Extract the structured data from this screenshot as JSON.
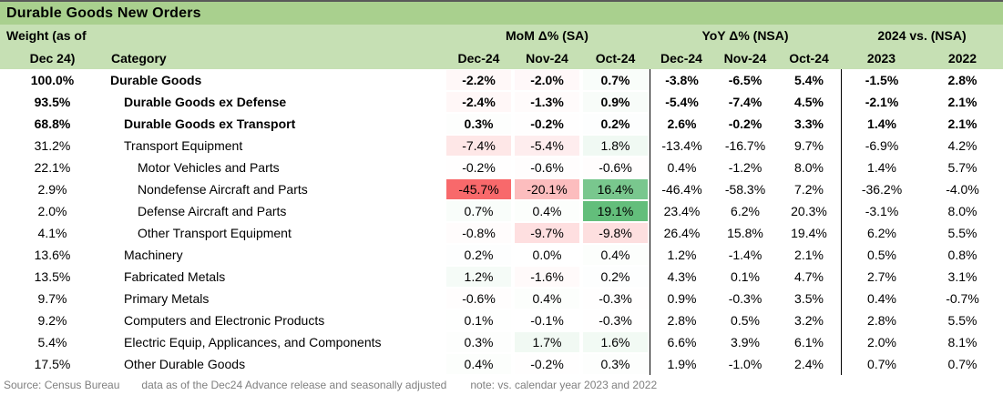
{
  "chart_data": {
    "type": "table",
    "title": "Durable Goods New Orders",
    "header": {
      "weight_line1": "Weight (as of",
      "weight_line2": "Dec 24)",
      "category": "Category",
      "groups": [
        {
          "label": "MoM Δ% (SA)",
          "cols": [
            "Dec-24",
            "Nov-24",
            "Oct-24"
          ]
        },
        {
          "label": "YoY Δ% (NSA)",
          "cols": [
            "Dec-24",
            "Nov-24",
            "Oct-24"
          ]
        },
        {
          "label": "2024 vs. (NSA)",
          "cols": [
            "2023",
            "2022"
          ]
        }
      ]
    },
    "rows": [
      {
        "weight": 100.0,
        "category": "Durable Goods",
        "indent": 0,
        "bold": true,
        "mom": [
          -2.2,
          -2.0,
          0.7
        ],
        "yoy": [
          -3.8,
          -6.5,
          5.4
        ],
        "vs": [
          -1.5,
          2.8
        ]
      },
      {
        "weight": 93.5,
        "category": "Durable Goods ex Defense",
        "indent": 1,
        "bold": true,
        "mom": [
          -2.4,
          -1.3,
          0.9
        ],
        "yoy": [
          -5.4,
          -7.4,
          4.5
        ],
        "vs": [
          -2.1,
          2.1
        ]
      },
      {
        "weight": 68.8,
        "category": "Durable Goods ex Transport",
        "indent": 1,
        "bold": true,
        "mom": [
          0.3,
          -0.2,
          0.2
        ],
        "yoy": [
          2.6,
          -0.2,
          3.3
        ],
        "vs": [
          1.4,
          2.1
        ]
      },
      {
        "weight": 31.2,
        "category": "Transport Equipment",
        "indent": 1,
        "bold": false,
        "mom": [
          -7.4,
          -5.4,
          1.8
        ],
        "yoy": [
          -13.4,
          -16.7,
          9.7
        ],
        "vs": [
          -6.9,
          4.2
        ]
      },
      {
        "weight": 22.1,
        "category": "Motor Vehicles and Parts",
        "indent": 2,
        "bold": false,
        "mom": [
          -0.2,
          -0.6,
          -0.6
        ],
        "yoy": [
          0.4,
          -1.2,
          8.0
        ],
        "vs": [
          1.4,
          5.7
        ]
      },
      {
        "weight": 2.9,
        "category": "Nondefense Aircraft and Parts",
        "indent": 2,
        "bold": false,
        "mom": [
          -45.7,
          -20.1,
          16.4
        ],
        "yoy": [
          -46.4,
          -58.3,
          7.2
        ],
        "vs": [
          -36.2,
          -4.0
        ]
      },
      {
        "weight": 2.0,
        "category": "Defense Aircraft and Parts",
        "indent": 2,
        "bold": false,
        "mom": [
          0.7,
          0.4,
          19.1
        ],
        "yoy": [
          23.4,
          6.2,
          20.3
        ],
        "vs": [
          -3.1,
          8.0
        ]
      },
      {
        "weight": 4.1,
        "category": "Other Transport Equipment",
        "indent": 2,
        "bold": false,
        "mom": [
          -0.8,
          -9.7,
          -9.8
        ],
        "yoy": [
          26.4,
          15.8,
          19.4
        ],
        "vs": [
          6.2,
          5.5
        ]
      },
      {
        "weight": 13.6,
        "category": "Machinery",
        "indent": 1,
        "bold": false,
        "mom": [
          0.2,
          0.0,
          0.4
        ],
        "yoy": [
          1.2,
          -1.4,
          2.1
        ],
        "vs": [
          0.5,
          0.8
        ]
      },
      {
        "weight": 13.5,
        "category": "Fabricated Metals",
        "indent": 1,
        "bold": false,
        "mom": [
          1.2,
          -1.6,
          0.2
        ],
        "yoy": [
          4.3,
          0.1,
          4.7
        ],
        "vs": [
          2.7,
          3.1
        ]
      },
      {
        "weight": 9.7,
        "category": "Primary Metals",
        "indent": 1,
        "bold": false,
        "mom": [
          -0.6,
          0.4,
          -0.3
        ],
        "yoy": [
          0.9,
          -0.3,
          3.5
        ],
        "vs": [
          0.4,
          -0.7
        ]
      },
      {
        "weight": 9.2,
        "category": "Computers and Electronic Products",
        "indent": 1,
        "bold": false,
        "mom": [
          0.1,
          -0.1,
          -0.3
        ],
        "yoy": [
          2.8,
          0.5,
          3.2
        ],
        "vs": [
          2.8,
          5.5
        ]
      },
      {
        "weight": 5.4,
        "category": "Electric Equip, Applicances, and Components",
        "indent": 1,
        "bold": false,
        "mom": [
          0.3,
          1.7,
          1.6
        ],
        "yoy": [
          6.6,
          3.9,
          6.1
        ],
        "vs": [
          2.0,
          8.1
        ]
      },
      {
        "weight": 17.5,
        "category": "Other Durable Goods",
        "indent": 1,
        "bold": false,
        "mom": [
          0.4,
          -0.2,
          0.3
        ],
        "yoy": [
          1.9,
          -1.0,
          2.4
        ],
        "vs": [
          0.7,
          0.7
        ]
      }
    ],
    "footer": {
      "source": "Source: Census Bureau",
      "release_note": "data as of the Dec24 Advance release and seasonally adjusted",
      "comparison_note": "note: vs. calendar year 2023 and 2022"
    },
    "colors": {
      "title_bg": "#A9D08E",
      "header_bg": "#C6E0B4",
      "cf_negative": "#F8696B",
      "cf_neutral": "#FFFFFF",
      "cf_positive": "#63BE7B",
      "separator": "#000000",
      "footer_text": "#7F7F7F"
    }
  }
}
